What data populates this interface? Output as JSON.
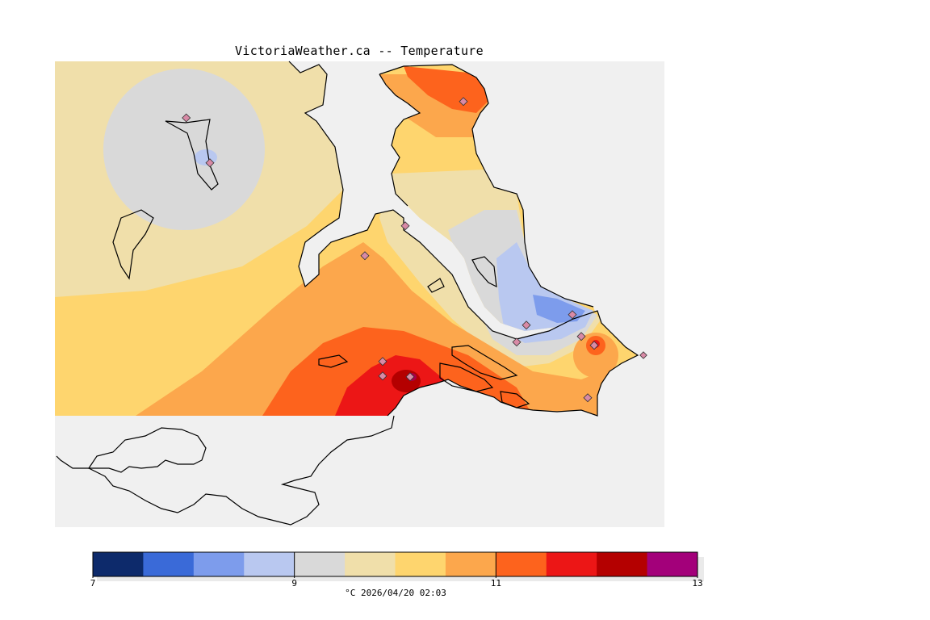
{
  "title": "VictoriaWeather.ca -- Temperature",
  "legend": {
    "units": "°C",
    "timestamp": "2026/04/20 02:03",
    "footer": "°C  2026/04/20 02:03",
    "ticks": [
      {
        "value": 7,
        "label": "7"
      },
      {
        "value": 9,
        "label": "9"
      },
      {
        "value": 11,
        "label": "11"
      },
      {
        "value": 13,
        "label": "13"
      }
    ],
    "min": 7,
    "max": 13,
    "colors": [
      "#0d2a6b",
      "#3a6ad8",
      "#7d9cec",
      "#b9c8f0",
      "#d9d9d9",
      "#f0dfaa",
      "#fed56e",
      "#fca74c",
      "#fd631d",
      "#ec1616",
      "#b40000",
      "#a3007a"
    ]
  },
  "colors": {
    "ocean": "#f0f0f0",
    "coast": "#000000",
    "station": "#d88aa6"
  }
}
